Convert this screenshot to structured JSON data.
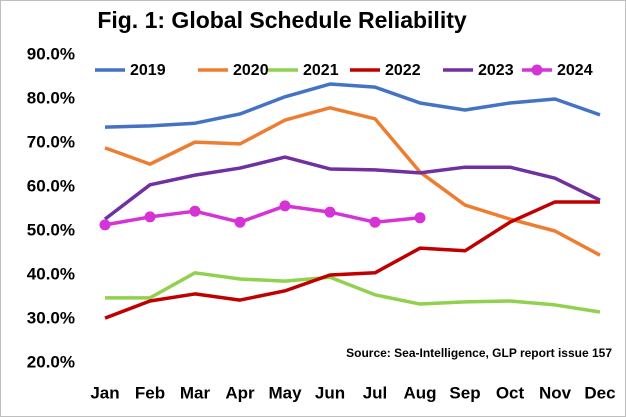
{
  "chart_data": {
    "type": "line",
    "title": "Fig. 1: Global Schedule Reliability",
    "source": "Source: Sea-Intelligence, GLP report issue 157",
    "categories": [
      "Jan",
      "Feb",
      "Mar",
      "Apr",
      "May",
      "Jun",
      "Jul",
      "Aug",
      "Sep",
      "Oct",
      "Nov",
      "Dec"
    ],
    "series": [
      {
        "name": "2019",
        "color": "#4472c4",
        "values": [
          73.6,
          73.9,
          74.5,
          76.6,
          80.5,
          83.4,
          82.7,
          79.1,
          77.5,
          79.1,
          80,
          76.4
        ]
      },
      {
        "name": "2020",
        "color": "#ed7d31",
        "values": [
          68.9,
          65.2,
          70.2,
          69.8,
          75.2,
          78,
          75.5,
          63.4,
          55.9,
          52.7,
          50,
          44.5
        ]
      },
      {
        "name": "2021",
        "color": "#92d050",
        "values": [
          34.8,
          34.8,
          40.5,
          39.1,
          38.6,
          39.5,
          35.5,
          33.4,
          33.9,
          34.1,
          33.2,
          31.6
        ]
      },
      {
        "name": "2022",
        "color": "#c00000",
        "values": [
          30.2,
          34.1,
          35.7,
          34.3,
          36.4,
          40,
          40.5,
          46.1,
          45.5,
          52,
          56.6,
          56.6
        ]
      },
      {
        "name": "2023",
        "color": "#7030a0",
        "values": [
          52.7,
          60.5,
          62.7,
          64.3,
          66.8,
          64.1,
          63.9,
          63.2,
          64.5,
          64.5,
          62,
          57
        ]
      },
      {
        "name": "2024",
        "color": "#d633d6",
        "markers": true,
        "values": [
          51.4,
          53.2,
          54.5,
          52,
          55.7,
          54.3,
          52,
          53,
          null,
          null,
          null,
          null
        ]
      }
    ],
    "ylim": [
      20,
      90
    ],
    "yticks": [
      {
        "value": 20,
        "label": "20.0%"
      },
      {
        "value": 30,
        "label": "30.0%"
      },
      {
        "value": 40,
        "label": "40.0%"
      },
      {
        "value": 50,
        "label": "50.0%"
      },
      {
        "value": 60,
        "label": "60.0%"
      },
      {
        "value": 70,
        "label": "70.0%"
      },
      {
        "value": 80,
        "label": "80.0%"
      },
      {
        "value": 90,
        "label": "90.0%"
      }
    ],
    "grid": false,
    "legend": "top"
  }
}
